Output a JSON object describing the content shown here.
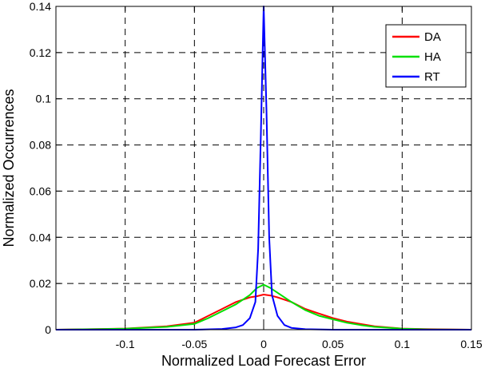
{
  "chart_data": {
    "type": "line",
    "title": "",
    "xlabel": "Normalized Load Forecast Error",
    "ylabel": "Normalized Occurrences",
    "xlim": [
      -0.15,
      0.15
    ],
    "ylim": [
      0,
      0.14
    ],
    "grid": true,
    "legend_position": "top-right",
    "x_ticks": [
      -0.1,
      -0.05,
      0,
      0.05,
      0.1,
      0.15
    ],
    "x_tick_labels": [
      "-0.1",
      "-0.05",
      "0",
      "0.05",
      "0.1",
      "0.15"
    ],
    "y_ticks": [
      0,
      0.02,
      0.04,
      0.06,
      0.08,
      0.1,
      0.12,
      0.14
    ],
    "y_tick_labels": [
      "0",
      "0.02",
      "0.04",
      "0.06",
      "0.08",
      "0.1",
      "0.12",
      "0.14"
    ],
    "series": [
      {
        "name": "DA",
        "color": "#ff0000",
        "x": [
          -0.15,
          -0.1,
          -0.07,
          -0.05,
          -0.04,
          -0.03,
          -0.02,
          -0.01,
          -0.005,
          0,
          0.005,
          0.01,
          0.02,
          0.03,
          0.04,
          0.05,
          0.06,
          0.07,
          0.08,
          0.1,
          0.12,
          0.15
        ],
        "y": [
          0.0,
          0.0005,
          0.0015,
          0.003,
          0.006,
          0.009,
          0.012,
          0.014,
          0.0145,
          0.0152,
          0.0148,
          0.014,
          0.012,
          0.009,
          0.007,
          0.005,
          0.0035,
          0.0025,
          0.0015,
          0.0005,
          0.0002,
          0.0
        ]
      },
      {
        "name": "HA",
        "color": "#00e000",
        "x": [
          -0.15,
          -0.1,
          -0.07,
          -0.05,
          -0.04,
          -0.03,
          -0.02,
          -0.01,
          -0.005,
          0,
          0.005,
          0.01,
          0.02,
          0.03,
          0.04,
          0.05,
          0.06,
          0.07,
          0.08,
          0.1,
          0.12,
          0.15
        ],
        "y": [
          0.0,
          0.0004,
          0.0012,
          0.0025,
          0.005,
          0.008,
          0.011,
          0.015,
          0.018,
          0.0195,
          0.018,
          0.016,
          0.012,
          0.0085,
          0.006,
          0.0045,
          0.003,
          0.002,
          0.0012,
          0.0004,
          0.0001,
          0.0
        ]
      },
      {
        "name": "RT",
        "color": "#0000ff",
        "x": [
          -0.15,
          -0.05,
          -0.03,
          -0.02,
          -0.015,
          -0.01,
          -0.006,
          -0.004,
          -0.002,
          0,
          0.002,
          0.004,
          0.006,
          0.01,
          0.015,
          0.02,
          0.03,
          0.05,
          0.15
        ],
        "y": [
          0.0,
          0.0,
          0.0003,
          0.001,
          0.002,
          0.005,
          0.012,
          0.035,
          0.085,
          0.14,
          0.095,
          0.04,
          0.015,
          0.006,
          0.002,
          0.0008,
          0.0002,
          0.0,
          0.0
        ]
      }
    ]
  }
}
